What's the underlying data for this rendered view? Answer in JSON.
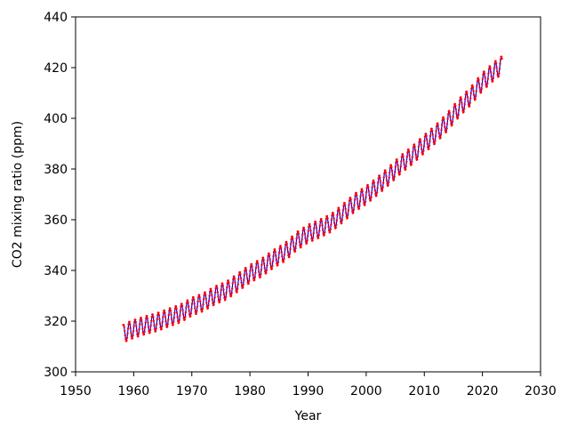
{
  "chart_data": {
    "type": "line",
    "title": "",
    "xlabel": "Year",
    "ylabel": "CO2 mixing ratio (ppm)",
    "xlim": [
      1950,
      2030
    ],
    "ylim": [
      300,
      440
    ],
    "xticks": [
      1950,
      1960,
      1970,
      1980,
      1990,
      2000,
      2010,
      2020,
      2030
    ],
    "yticks": [
      300,
      320,
      340,
      360,
      380,
      400,
      420,
      440
    ],
    "grid": false,
    "legend": "none",
    "series": [
      {
        "style": "solid line",
        "color": "#0000ff",
        "x": [
          1958.2,
          1959,
          1960,
          1962,
          1964,
          1966,
          1968,
          1970,
          1972,
          1974,
          1976,
          1978,
          1980,
          1982,
          1984,
          1986,
          1988,
          1990,
          1992,
          1994,
          1996,
          1998,
          2000,
          2002,
          2004,
          2006,
          2008,
          2010,
          2012,
          2014,
          2016,
          2018,
          2020,
          2022,
          2023.4
        ],
        "values": [
          315.0,
          316.0,
          316.9,
          318.4,
          319.6,
          321.4,
          323.0,
          325.7,
          327.5,
          330.2,
          332.1,
          335.4,
          338.7,
          341.1,
          344.5,
          347.2,
          351.5,
          354.5,
          356.5,
          358.8,
          362.6,
          366.7,
          369.7,
          373.4,
          377.5,
          381.9,
          385.6,
          389.9,
          393.9,
          398.7,
          404.2,
          408.8,
          414.4,
          418.6,
          421.1
        ],
        "seasonal_amplitude_ppm": 3.2
      },
      {
        "style": "dotted points",
        "color": "#ff0000",
        "x": [
          1958.2,
          1959,
          1960,
          1962,
          1964,
          1966,
          1968,
          1970,
          1972,
          1974,
          1976,
          1978,
          1980,
          1982,
          1984,
          1986,
          1988,
          1990,
          1992,
          1994,
          1996,
          1998,
          2000,
          2002,
          2004,
          2006,
          2008,
          2010,
          2012,
          2014,
          2016,
          2018,
          2020,
          2022,
          2023.4
        ],
        "values": [
          315.0,
          316.0,
          316.9,
          318.4,
          319.6,
          321.4,
          323.0,
          325.7,
          327.5,
          330.2,
          332.1,
          335.4,
          338.7,
          341.1,
          344.5,
          347.2,
          351.5,
          354.5,
          356.5,
          358.8,
          362.6,
          366.7,
          369.7,
          373.4,
          377.5,
          381.9,
          385.6,
          389.9,
          393.9,
          398.7,
          404.2,
          408.8,
          414.4,
          418.6,
          421.1
        ],
        "seasonal_amplitude_ppm": 3.6
      }
    ]
  }
}
